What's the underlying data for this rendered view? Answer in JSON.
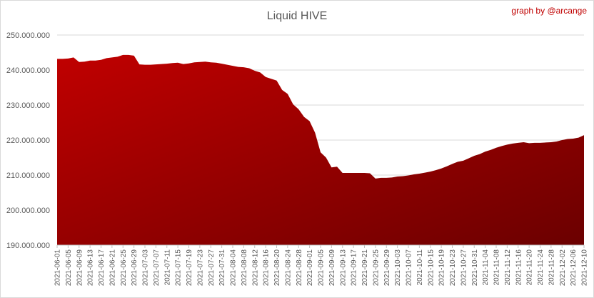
{
  "chart_data": {
    "type": "area",
    "title": "Liquid HIVE",
    "credit": "graph by @arcange",
    "xlabel": "",
    "ylabel": "",
    "ylim": [
      190000000,
      250000000
    ],
    "yticks": [
      "190.000.000",
      "200.000.000",
      "210.000.000",
      "220.000.000",
      "230.000.000",
      "240.000.000",
      "250.000.000"
    ],
    "ytick_values": [
      190000000,
      200000000,
      210000000,
      220000000,
      230000000,
      240000000,
      250000000
    ],
    "xticks": [
      "2021-06-01",
      "2021-06-05",
      "2021-06-09",
      "2021-06-13",
      "2021-06-17",
      "2021-06-21",
      "2021-06-25",
      "2021-06-29",
      "2021-07-03",
      "2021-07-07",
      "2021-07-11",
      "2021-07-15",
      "2021-07-19",
      "2021-07-23",
      "2021-07-27",
      "2021-07-31",
      "2021-08-04",
      "2021-08-08",
      "2021-08-12",
      "2021-08-16",
      "2021-08-20",
      "2021-08-24",
      "2021-08-28",
      "2021-09-01",
      "2021-09-05",
      "2021-09-09",
      "2021-09-13",
      "2021-09-17",
      "2021-09-21",
      "2021-09-25",
      "2021-09-29",
      "2021-10-03",
      "2021-10-07",
      "2021-10-11",
      "2021-10-15",
      "2021-10-19",
      "2021-10-23",
      "2021-10-27",
      "2021-10-31",
      "2021-11-04",
      "2021-11-08",
      "2021-11-12",
      "2021-11-16",
      "2021-11-20",
      "2021-11-24",
      "2021-11-28",
      "2021-12-02",
      "2021-12-06",
      "2021-12-10"
    ],
    "grid": true,
    "legend": "none",
    "colors": {
      "fill_top": "#c00000",
      "fill_bottom": "#6b0000"
    },
    "series": [
      {
        "x": [
          "2021-06-01",
          "2021-06-03",
          "2021-06-05",
          "2021-06-07",
          "2021-06-09",
          "2021-06-11",
          "2021-06-13",
          "2021-06-15",
          "2021-06-17",
          "2021-06-19",
          "2021-06-21",
          "2021-06-23",
          "2021-06-25",
          "2021-06-27",
          "2021-06-29",
          "2021-07-01",
          "2021-07-03",
          "2021-07-05",
          "2021-07-07",
          "2021-07-09",
          "2021-07-11",
          "2021-07-13",
          "2021-07-15",
          "2021-07-17",
          "2021-07-19",
          "2021-07-21",
          "2021-07-23",
          "2021-07-25",
          "2021-07-27",
          "2021-07-29",
          "2021-07-31",
          "2021-08-02",
          "2021-08-04",
          "2021-08-06",
          "2021-08-08",
          "2021-08-10",
          "2021-08-12",
          "2021-08-14",
          "2021-08-16",
          "2021-08-18",
          "2021-08-20",
          "2021-08-22",
          "2021-08-24",
          "2021-08-26",
          "2021-08-28",
          "2021-08-30",
          "2021-09-01",
          "2021-09-03",
          "2021-09-05",
          "2021-09-07",
          "2021-09-09",
          "2021-09-11",
          "2021-09-13",
          "2021-09-15",
          "2021-09-17",
          "2021-09-19",
          "2021-09-21",
          "2021-09-23",
          "2021-09-25",
          "2021-09-27",
          "2021-09-29",
          "2021-10-01",
          "2021-10-03",
          "2021-10-05",
          "2021-10-07",
          "2021-10-09",
          "2021-10-11",
          "2021-10-13",
          "2021-10-15",
          "2021-10-17",
          "2021-10-19",
          "2021-10-21",
          "2021-10-23",
          "2021-10-25",
          "2021-10-27",
          "2021-10-29",
          "2021-10-31",
          "2021-11-02",
          "2021-11-04",
          "2021-11-06",
          "2021-11-08",
          "2021-11-10",
          "2021-11-12",
          "2021-11-14",
          "2021-11-16",
          "2021-11-18",
          "2021-11-20",
          "2021-11-22",
          "2021-11-24",
          "2021-11-26",
          "2021-11-28",
          "2021-11-30",
          "2021-12-02",
          "2021-12-04",
          "2021-12-06",
          "2021-12-08",
          "2021-12-10"
        ],
        "values": [
          243200000,
          243200000,
          243300000,
          243600000,
          242300000,
          242400000,
          242700000,
          242700000,
          242900000,
          243400000,
          243600000,
          243800000,
          244300000,
          244300000,
          244100000,
          241600000,
          241500000,
          241500000,
          241600000,
          241700000,
          241800000,
          242000000,
          242100000,
          241700000,
          241900000,
          242200000,
          242300000,
          242400000,
          242200000,
          242100000,
          241800000,
          241500000,
          241200000,
          240900000,
          240800000,
          240500000,
          239800000,
          239300000,
          238000000,
          237500000,
          237000000,
          234300000,
          233200000,
          230200000,
          228800000,
          226600000,
          225400000,
          222100000,
          216500000,
          215000000,
          212200000,
          212400000,
          210600000,
          210600000,
          210600000,
          210600000,
          210600000,
          210500000,
          209000000,
          209200000,
          209200000,
          209300000,
          209600000,
          209700000,
          209900000,
          210200000,
          210400000,
          210700000,
          211000000,
          211400000,
          211900000,
          212500000,
          213200000,
          213800000,
          214100000,
          214800000,
          215500000,
          216000000,
          216700000,
          217200000,
          217800000,
          218300000,
          218700000,
          219000000,
          219200000,
          219400000,
          219100000,
          219200000,
          219200000,
          219300000,
          219400000,
          219600000,
          220000000,
          220300000,
          220400000,
          220700000,
          221400000
        ]
      }
    ]
  }
}
